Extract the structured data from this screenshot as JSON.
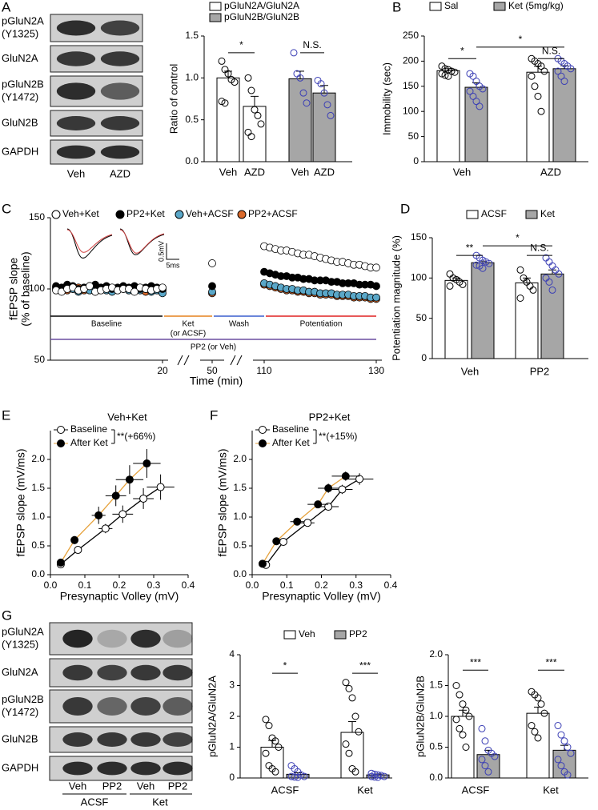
{
  "panels": [
    "A",
    "B",
    "C",
    "D",
    "E",
    "F",
    "G"
  ],
  "blots": [
    {
      "rows": [
        [
          "pGluN2A",
          "(Y1325)"
        ],
        [
          "GluN2A"
        ],
        [
          "pGluN2B",
          "(Y1472)"
        ],
        [
          "GluN2B"
        ],
        [
          "GAPDH"
        ]
      ],
      "lanes": [
        "Veh",
        "AZD"
      ]
    },
    {
      "rows": [
        [
          "pGluN2A",
          "(Y1325)"
        ],
        [
          "GluN2A"
        ],
        [
          "pGluN2B",
          "(Y1472)"
        ],
        [
          "GluN2B"
        ],
        [
          "GAPDH"
        ]
      ],
      "lanes": [
        "Veh",
        "PP2",
        "Veh",
        "PP2"
      ],
      "groups": [
        "ACSF",
        "Ket"
      ]
    }
  ],
  "chart_data": [
    {
      "type": "bar",
      "ylabel": "Ratio of control",
      "categories": [
        "Veh",
        "AZD"
      ],
      "series": [
        {
          "name": "pGluN2A/GluN2A",
          "color": "#ffffff",
          "point_color": "#000000",
          "values": [
            1.0,
            0.66
          ],
          "errors": [
            0.08,
            0.12
          ],
          "points": [
            [
              1.2,
              1.1,
              1.05,
              0.98,
              0.95,
              0.72,
              0.7
            ],
            [
              1.0,
              0.85,
              0.62,
              0.55,
              0.45,
              0.35,
              0.3
            ]
          ]
        },
        {
          "name": "pGluN2B/GluN2B",
          "color": "#a6a6a6",
          "point_color": "#3b3fb5",
          "values": [
            0.99,
            0.82
          ],
          "errors": [
            0.09,
            0.09
          ],
          "points": [
            [
              1.3,
              1.05,
              1.0,
              0.82,
              0.7
            ],
            [
              0.97,
              0.93,
              0.82,
              0.68,
              0.55
            ]
          ]
        }
      ],
      "ylim": [
        0,
        1.5
      ],
      "yticks": [
        {
          "value": 0,
          "label": "0.0"
        },
        0.5,
        {
          "value": 1,
          "label": "1.0"
        },
        1.5
      ],
      "annotations": [
        "*",
        "N.S."
      ]
    },
    {
      "type": "bar",
      "ylabel": "Immobility (sec)",
      "categories": [
        "Veh",
        "AZD"
      ],
      "series": [
        {
          "name": "Sal",
          "color": "#ffffff",
          "point_color": "#000000",
          "values": [
            181,
            178
          ],
          "errors": [
            4,
            12
          ],
          "points": [
            [
              190,
              185,
              183,
              180,
              178,
              175,
              172,
              170
            ],
            [
              205,
              200,
              195,
              190,
              180,
              170,
              150,
              130,
              100
            ]
          ]
        },
        {
          "name": "Ket (5mg/kg)",
          "color": "#a6a6a6",
          "point_color": "#3b3fb5",
          "values": [
            148,
            185
          ],
          "errors": [
            9,
            6
          ],
          "points": [
            [
              175,
              170,
              160,
              150,
              145,
              140,
              130,
              120,
              110
            ],
            [
              205,
              200,
              195,
              190,
              185,
              180,
              170,
              160
            ]
          ]
        }
      ],
      "ylim": [
        0,
        250
      ],
      "yticks": [
        0,
        50,
        100,
        150,
        200,
        250
      ],
      "annotations": [
        "*",
        "*",
        "N.S."
      ]
    },
    {
      "type": "line",
      "ylabel": [
        "fEPSP slope",
        "(% of baseline)"
      ],
      "xlabel": "Time (min)",
      "x": [
        1,
        2,
        3,
        4,
        5,
        6,
        7,
        8,
        9,
        10,
        11,
        12,
        13,
        14,
        15,
        16,
        17,
        18,
        19,
        20,
        50,
        110,
        111,
        112,
        113,
        114,
        115,
        116,
        117,
        118,
        119,
        120,
        121,
        122,
        123,
        124,
        125,
        126,
        127,
        128,
        129,
        130
      ],
      "series": [
        {
          "name": "Veh+Ket",
          "color": "#ffffff",
          "values": [
            99,
            98,
            100,
            101,
            99,
            100,
            102,
            98,
            99,
            100,
            101,
            99,
            100,
            100,
            98,
            101,
            100,
            99,
            100,
            101,
            118,
            130,
            129,
            128,
            127,
            127,
            126,
            125,
            124,
            124,
            123,
            122,
            121,
            120,
            119,
            119,
            118,
            117,
            117,
            116,
            115,
            115
          ]
        },
        {
          "name": "PP2+Ket",
          "color": "#000000",
          "values": [
            102,
            101,
            103,
            102,
            100,
            101,
            102,
            103,
            101,
            102,
            100,
            101,
            102,
            101,
            102,
            100,
            101,
            102,
            101,
            100,
            102,
            112,
            111,
            110,
            109,
            109,
            108,
            108,
            107,
            107,
            106,
            106,
            106,
            105,
            105,
            104,
            104,
            104,
            103,
            103,
            103,
            102
          ]
        },
        {
          "name": "Veh+ACSF",
          "color": "#5aa7c8",
          "values": [
            100,
            99,
            101,
            100,
            98,
            100,
            99,
            101,
            100,
            99,
            98,
            100,
            101,
            99,
            100,
            99,
            100,
            98,
            99,
            97,
            98,
            104,
            103,
            102,
            101,
            100,
            100,
            99,
            99,
            98,
            98,
            97,
            97,
            97,
            96,
            96,
            96,
            95,
            95,
            95,
            94,
            94
          ]
        },
        {
          "name": "PP2+ACSF",
          "color": "#d9692b",
          "values": [
            101,
            100,
            99,
            100,
            101,
            99,
            100,
            98,
            100,
            101,
            99,
            100,
            100,
            99,
            101,
            100,
            98,
            99,
            100,
            99,
            97,
            103,
            102,
            101,
            100,
            99,
            99,
            98,
            98,
            97,
            97,
            96,
            96,
            96,
            95,
            95,
            95,
            94,
            94,
            94,
            93,
            93
          ]
        }
      ],
      "xlim": [
        0,
        131
      ],
      "x_breaks": [
        [
          21,
          48
        ],
        [
          52,
          108
        ]
      ],
      "xticks": [
        20,
        50,
        110,
        130
      ],
      "ylim": [
        50,
        150
      ],
      "yticks": [
        50,
        100,
        150
      ],
      "scale_bar": [
        "0.5mV",
        "5ms"
      ],
      "phases": [
        {
          "label": "Baseline",
          "start": 0,
          "end": 20,
          "color": "#000000"
        },
        {
          "label": [
            "Ket",
            "(or ACSF)"
          ],
          "start": 20,
          "end": 50,
          "color": "#e6821e"
        },
        {
          "label": "Wash",
          "start": 50,
          "end": 110,
          "color": "#3a5fcd"
        },
        {
          "label": "Potentiation",
          "start": 110,
          "end": 130,
          "color": "#e02020"
        },
        {
          "label": "PP2 (or Veh)",
          "start": 0,
          "end": 130,
          "color": "#6a4fa0"
        }
      ]
    },
    {
      "type": "bar",
      "ylabel": "Potentiation magnitude (%)",
      "categories": [
        "Veh",
        "PP2"
      ],
      "series": [
        {
          "name": "ACSF",
          "color": "#ffffff",
          "point_color": "#000000",
          "values": [
            97,
            94
          ],
          "errors": [
            3,
            6
          ],
          "points": [
            [
              105,
              100,
              98,
              95,
              92,
              90
            ],
            [
              110,
              100,
              95,
              90,
              85,
              75
            ]
          ]
        },
        {
          "name": "Ket",
          "color": "#a6a6a6",
          "point_color": "#3b3fb5",
          "values": [
            119,
            105
          ],
          "errors": [
            2,
            5
          ],
          "points": [
            [
              128,
              125,
              122,
              120,
              118,
              116,
              115,
              112
            ],
            [
              125,
              120,
              115,
              110,
              105,
              100,
              95,
              85
            ]
          ]
        }
      ],
      "ylim": [
        0,
        150
      ],
      "yticks": [
        0,
        50,
        100,
        150
      ],
      "annotations": [
        "**",
        "*",
        "N.S."
      ]
    },
    {
      "type": "scatter",
      "title": "Veh+Ket",
      "xlabel": "Presynaptic Volley (mV)",
      "ylabel": "fEPSP slope (mV/ms)",
      "annotation": "**(+66%)",
      "series": [
        {
          "name": "Baseline",
          "color": "#ffffff",
          "line_color": "#000000",
          "x": [
            0.03,
            0.08,
            0.16,
            0.21,
            0.27,
            0.32
          ],
          "values": [
            0.18,
            0.43,
            0.8,
            1.05,
            1.32,
            1.52
          ],
          "xerr": [
            0.01,
            0.01,
            0.02,
            0.03,
            0.03,
            0.04
          ],
          "yerr": [
            0.02,
            0.05,
            0.08,
            0.15,
            0.18,
            0.22
          ]
        },
        {
          "name": "After Ket",
          "color": "#000000",
          "line_color": "#e6a23c",
          "x": [
            0.03,
            0.07,
            0.14,
            0.19,
            0.23,
            0.28
          ],
          "values": [
            0.21,
            0.6,
            1.03,
            1.37,
            1.65,
            1.93
          ],
          "xerr": [
            0.01,
            0.01,
            0.02,
            0.03,
            0.04,
            0.04
          ],
          "yerr": [
            0.03,
            0.07,
            0.15,
            0.18,
            0.25,
            0.25
          ]
        }
      ],
      "xlim": [
        0,
        0.4
      ],
      "xticks": [
        {
          "value": 0,
          "label": "0.0"
        },
        0.1,
        0.2,
        0.3,
        0.4
      ],
      "ylim": [
        0,
        2.5
      ],
      "yticks": [
        {
          "value": 0,
          "label": "0.0"
        },
        0.5,
        {
          "value": 1,
          "label": "1.0"
        },
        1.5,
        {
          "value": 2,
          "label": "2.0"
        }
      ]
    },
    {
      "type": "scatter",
      "title": "PP2+Ket",
      "xlabel": "Presynaptic Volley (mV)",
      "ylabel": "fEPSP slope (mV/ms)",
      "annotation": "**(+15%)",
      "series": [
        {
          "name": "Baseline",
          "color": "#ffffff",
          "line_color": "#000000",
          "x": [
            0.04,
            0.09,
            0.16,
            0.22,
            0.26,
            0.31
          ],
          "values": [
            0.17,
            0.57,
            0.9,
            1.18,
            1.48,
            1.66
          ],
          "xerr": [
            0.01,
            0.01,
            0.02,
            0.03,
            0.03,
            0.04
          ],
          "yerr": [
            0.02,
            0.03,
            0.05,
            0.06,
            0.08,
            0.1
          ]
        },
        {
          "name": "After Ket",
          "color": "#000000",
          "line_color": "#e6a23c",
          "x": [
            0.03,
            0.07,
            0.13,
            0.19,
            0.22,
            0.27
          ],
          "values": [
            0.19,
            0.58,
            0.92,
            1.22,
            1.5,
            1.71
          ],
          "xerr": [
            0.01,
            0.01,
            0.02,
            0.03,
            0.03,
            0.04
          ],
          "yerr": [
            0.02,
            0.03,
            0.05,
            0.06,
            0.08,
            0.08
          ]
        }
      ],
      "xlim": [
        0,
        0.4
      ],
      "xticks": [
        {
          "value": 0,
          "label": "0.0"
        },
        0.1,
        0.2,
        0.3,
        0.4
      ],
      "ylim": [
        0,
        2.5
      ],
      "yticks": [
        {
          "value": 0,
          "label": "0.0"
        },
        0.5,
        {
          "value": 1,
          "label": "1.0"
        },
        1.5,
        {
          "value": 2,
          "label": "2.0"
        }
      ]
    },
    {
      "type": "bar",
      "ylabel": "pGluN2A/GluN2A",
      "categories": [
        "ACSF",
        "Ket"
      ],
      "series": [
        {
          "name": "Veh",
          "color": "#ffffff",
          "point_color": "#000000",
          "values": [
            1.0,
            1.48
          ],
          "errors": [
            0.22,
            0.35
          ],
          "points": [
            [
              1.9,
              1.7,
              1.3,
              1.2,
              1.0,
              0.8,
              0.4,
              0.3,
              0.2
            ],
            [
              3.1,
              2.9,
              2.6,
              2.0,
              1.5,
              1.1,
              0.8,
              0.3,
              0.2
            ]
          ]
        },
        {
          "name": "PP2",
          "color": "#a6a6a6",
          "point_color": "#3b3fb5",
          "values": [
            0.12,
            0.1
          ],
          "errors": [
            0.05,
            0.03
          ],
          "points": [
            [
              0.4,
              0.3,
              0.2,
              0.1,
              0.05,
              0.05,
              0.03,
              0.02
            ],
            [
              0.15,
              0.12,
              0.1,
              0.08,
              0.05,
              0.05,
              0.03,
              0.02
            ]
          ]
        }
      ],
      "ylim": [
        0,
        4
      ],
      "yticks": [
        0,
        1,
        2,
        3,
        4
      ],
      "annotations": [
        "*",
        "***"
      ]
    },
    {
      "type": "bar",
      "ylabel": "pGluN2B/GluN2B",
      "categories": [
        "ACSF",
        "Ket"
      ],
      "series": [
        {
          "color": "#ffffff",
          "point_color": "#000000",
          "values": [
            1.0,
            1.05
          ],
          "errors": [
            0.1,
            0.1
          ],
          "points": [
            [
              1.5,
              1.35,
              1.2,
              1.1,
              1.0,
              0.95,
              0.8,
              0.7,
              0.5
            ],
            [
              1.4,
              1.35,
              1.3,
              1.2,
              1.05,
              0.85,
              0.75,
              0.65
            ]
          ]
        },
        {
          "color": "#a6a6a6",
          "point_color": "#3b3fb5",
          "values": [
            0.38,
            0.45
          ],
          "errors": [
            0.07,
            0.08
          ],
          "points": [
            [
              0.8,
              0.6,
              0.45,
              0.4,
              0.35,
              0.3,
              0.2,
              0.1
            ],
            [
              0.85,
              0.7,
              0.6,
              0.5,
              0.4,
              0.3,
              0.2,
              0.1,
              0.05
            ]
          ]
        }
      ],
      "ylim": [
        0,
        2
      ],
      "yticks": [
        {
          "value": 0,
          "label": "0.0"
        },
        0.5,
        {
          "value": 1,
          "label": "1.0"
        },
        1.5,
        {
          "value": 2,
          "label": "2.0"
        }
      ],
      "annotations": [
        "***",
        "***"
      ]
    }
  ]
}
